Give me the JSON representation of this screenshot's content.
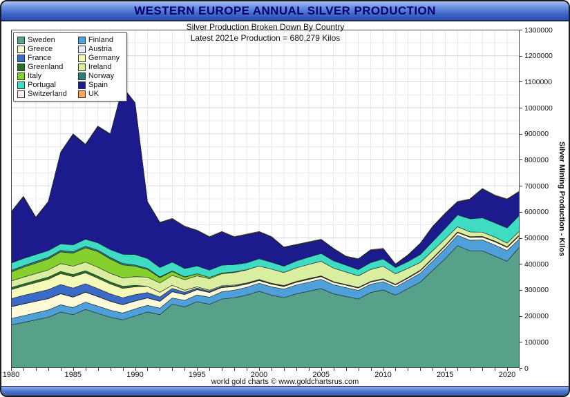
{
  "window": {
    "title": "WESTERN EUROPE ANNUAL SILVER PRODUCTION",
    "subtitle": "Silver Production Broken Down By Country",
    "annotation": "Latest 2021e Production = 680,279 Kilos",
    "footer": "world gold charts © www.goldchartsrus.com"
  },
  "chart_data": {
    "type": "area",
    "stacked": true,
    "title": "WESTERN EUROPE ANNUAL SILVER PRODUCTION",
    "subtitle": "Silver Production Broken Down By Country",
    "annotation": "Latest 2021e Production = 680,279 Kilos",
    "unit": "kilos",
    "ylabel": "Silver Mining Production - Kilos",
    "ylim": [
      0,
      1300000
    ],
    "y_tick_step": 100000,
    "y_grid_step": 50000,
    "grid": true,
    "legend_position": "top-left",
    "x": [
      1980,
      1981,
      1982,
      1983,
      1984,
      1985,
      1986,
      1987,
      1988,
      1989,
      1990,
      1991,
      1992,
      1993,
      1994,
      1995,
      1996,
      1997,
      1998,
      1999,
      2000,
      2001,
      2002,
      2003,
      2004,
      2005,
      2006,
      2007,
      2008,
      2009,
      2010,
      2011,
      2012,
      2013,
      2014,
      2015,
      2016,
      2017,
      2018,
      2019,
      2020,
      2021
    ],
    "x_ticks": [
      1980,
      1985,
      1990,
      1995,
      2000,
      2005,
      2010,
      2015,
      2020
    ],
    "series": [
      {
        "name": "Sweden",
        "color": "#57a08a",
        "values": [
          165000,
          175000,
          185000,
          195000,
          215000,
          205000,
          225000,
          210000,
          195000,
          185000,
          200000,
          215000,
          205000,
          245000,
          235000,
          255000,
          245000,
          265000,
          270000,
          280000,
          295000,
          280000,
          270000,
          285000,
          295000,
          305000,
          285000,
          275000,
          265000,
          290000,
          300000,
          280000,
          305000,
          330000,
          375000,
          420000,
          470000,
          450000,
          450000,
          430000,
          410000,
          465000
        ]
      },
      {
        "name": "Finland",
        "color": "#4f9fd8",
        "values": [
          25000,
          26000,
          27000,
          28000,
          28000,
          27000,
          28000,
          28000,
          27000,
          26000,
          27000,
          26000,
          25000,
          24000,
          25000,
          26000,
          27000,
          28000,
          29000,
          30000,
          31000,
          32000,
          33000,
          34000,
          35000,
          36000,
          35000,
          34000,
          33000,
          32000,
          32000,
          31000,
          32000,
          34000,
          36000,
          38000,
          40000,
          41000,
          42000,
          43000,
          41000,
          32000
        ]
      },
      {
        "name": "Greece",
        "color": "#fffbd8",
        "values": [
          45000,
          45000,
          44000,
          43000,
          42000,
          40000,
          38000,
          36000,
          34000,
          32000,
          30000,
          28000,
          26000,
          24000,
          22000,
          20000,
          18000,
          16000,
          14000,
          12000,
          10000,
          10000,
          10000,
          10000,
          10000,
          10000,
          9000,
          9000,
          9000,
          8000,
          8000,
          8000,
          8000,
          9000,
          9000,
          10000,
          10000,
          11000,
          11000,
          12000,
          12000,
          12000
        ]
      },
      {
        "name": "Austria",
        "color": "#e4ecf7",
        "values": [
          1000,
          1000,
          1000,
          1000,
          1000,
          1000,
          1000,
          1000,
          1000,
          1000,
          1000,
          1000,
          1000,
          1000,
          1000,
          1000,
          1000,
          1000,
          1000,
          1000,
          1000,
          1000,
          1000,
          1000,
          1000,
          1000,
          1000,
          1000,
          1000,
          1000,
          1000,
          1000,
          1000,
          1000,
          1000,
          1000,
          1000,
          1000,
          1000,
          1000,
          1000,
          1000
        ]
      },
      {
        "name": "France",
        "color": "#3a6bc6",
        "values": [
          30000,
          32000,
          33000,
          34000,
          35000,
          34000,
          32000,
          30000,
          28000,
          26000,
          24000,
          20000,
          16000,
          12000,
          8000,
          5000,
          4000,
          3000,
          2000,
          2000,
          1000,
          1000,
          1000,
          1000,
          1000,
          0,
          0,
          0,
          0,
          0,
          0,
          0,
          0,
          0,
          0,
          0,
          0,
          0,
          0,
          0,
          0,
          0
        ]
      },
      {
        "name": "Germany",
        "color": "#f5f9b8",
        "values": [
          35000,
          36000,
          38000,
          40000,
          42000,
          44000,
          42000,
          40000,
          38000,
          36000,
          30000,
          24000,
          18000,
          12000,
          8000,
          5000,
          4000,
          3000,
          3000,
          2000,
          2000,
          2000,
          2000,
          2000,
          2000,
          2000,
          2000,
          2000,
          2000,
          2000,
          2000,
          2000,
          2000,
          2000,
          2000,
          2000,
          2000,
          2000,
          2000,
          2000,
          2000,
          2000
        ]
      },
      {
        "name": "Greenland",
        "color": "#267326",
        "values": [
          8000,
          8000,
          8000,
          8000,
          8000,
          8000,
          8000,
          8000,
          8000,
          8000,
          6000,
          0,
          0,
          0,
          0,
          0,
          0,
          0,
          0,
          0,
          0,
          0,
          0,
          0,
          0,
          0,
          0,
          0,
          0,
          0,
          0,
          0,
          0,
          0,
          0,
          0,
          0,
          0,
          0,
          0,
          0,
          0
        ]
      },
      {
        "name": "Ireland",
        "color": "#d9ef9f",
        "values": [
          25000,
          26000,
          27000,
          28000,
          30000,
          32000,
          33000,
          34000,
          33000,
          32000,
          33000,
          35000,
          36000,
          38000,
          40000,
          42000,
          44000,
          46000,
          48000,
          50000,
          52000,
          54000,
          50000,
          52000,
          54000,
          56000,
          52000,
          48000,
          44000,
          46000,
          48000,
          40000,
          35000,
          30000,
          28000,
          25000,
          20000,
          18000,
          16000,
          15000,
          14000,
          15000
        ]
      },
      {
        "name": "Italy",
        "color": "#86d02e",
        "values": [
          35000,
          38000,
          40000,
          42000,
          45000,
          50000,
          55000,
          60000,
          55000,
          50000,
          40000,
          30000,
          20000,
          15000,
          10000,
          8000,
          5000,
          3000,
          2000,
          1000,
          0,
          0,
          0,
          0,
          0,
          0,
          0,
          0,
          0,
          0,
          0,
          0,
          0,
          0,
          0,
          0,
          0,
          0,
          0,
          0,
          0,
          0
        ]
      },
      {
        "name": "Norway",
        "color": "#2e7d7d",
        "values": [
          6000,
          6000,
          6000,
          6000,
          6000,
          6000,
          6000,
          6000,
          6000,
          6000,
          5000,
          4000,
          3000,
          2000,
          1000,
          0,
          0,
          0,
          0,
          0,
          0,
          0,
          0,
          0,
          0,
          0,
          0,
          0,
          0,
          0,
          0,
          0,
          0,
          0,
          0,
          0,
          0,
          0,
          0,
          0,
          0,
          0
        ]
      },
      {
        "name": "Portugal",
        "color": "#3fdcc4",
        "values": [
          28000,
          28000,
          27000,
          26000,
          25000,
          26000,
          27000,
          28000,
          30000,
          35000,
          40000,
          38000,
          36000,
          34000,
          32000,
          30000,
          28000,
          30000,
          28000,
          26000,
          28000,
          26000,
          24000,
          26000,
          28000,
          30000,
          28000,
          26000,
          24000,
          26000,
          28000,
          24000,
          26000,
          30000,
          35000,
          40000,
          45000,
          50000,
          55000,
          55000,
          58000,
          60000
        ]
      },
      {
        "name": "Spain",
        "color": "#1b1b8e",
        "values": [
          194000,
          236000,
          141000,
          186000,
          350000,
          424000,
          362000,
          446000,
          442000,
          640000,
          581000,
          216000,
          171000,
          165000,
          160000,
          135000,
          126000,
          127000,
          105000,
          108000,
          102000,
          96000,
          71000,
          61000,
          56000,
          52000,
          45000,
          32000,
          39000,
          47000,
          38000,
          11000,
          23000,
          41000,
          56000,
          56000,
          49000,
          74000,
          110000,
          104000,
          109000,
          90279
        ]
      },
      {
        "name": "Switzerland",
        "color": "#fcecec",
        "values": [
          1000,
          1000,
          1000,
          1000,
          1000,
          1000,
          1000,
          1000,
          1000,
          1000,
          1000,
          1000,
          1000,
          1000,
          1000,
          1000,
          1000,
          1000,
          1000,
          1000,
          1000,
          1000,
          1000,
          1000,
          1000,
          1000,
          1000,
          1000,
          1000,
          1000,
          1000,
          1000,
          1000,
          1000,
          1000,
          1000,
          1000,
          1000,
          1000,
          1000,
          1000,
          1000
        ]
      },
      {
        "name": "UK",
        "color": "#f2a95c",
        "values": [
          2000,
          2000,
          2000,
          2000,
          2000,
          2000,
          2000,
          2000,
          2000,
          2000,
          2000,
          2000,
          2000,
          2000,
          2000,
          2000,
          2000,
          2000,
          2000,
          2000,
          2000,
          2000,
          2000,
          2000,
          2000,
          2000,
          2000,
          2000,
          2000,
          2000,
          2000,
          2000,
          2000,
          2000,
          2000,
          2000,
          2000,
          2000,
          2000,
          2000,
          2000,
          2000
        ]
      }
    ]
  }
}
